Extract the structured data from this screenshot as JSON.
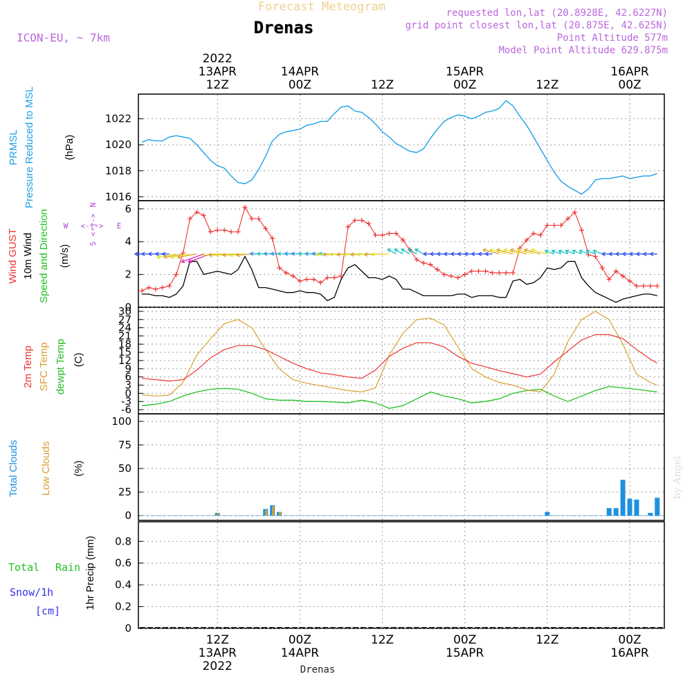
{
  "header": {
    "super_title": "Forecast Meteogram",
    "title": "Drenas",
    "model": "ICON-EU, ~ 7km",
    "requested": "requested lon,lat (20.8928E, 42.6227N)",
    "grid_point": "grid point closest lon,lat (20.875E, 42.625N)",
    "point_altitude": "Point Altitude 577m",
    "model_altitude": "Model Point Altitude 629.875m"
  },
  "footer": {
    "title": "Drenas",
    "credit": "by Angel"
  },
  "colors": {
    "pressure": "#1ea0e6",
    "gust": "#ee3333",
    "wind": "#000000",
    "temp": "#ee3333",
    "sfc": "#daa030",
    "dew": "#22c022",
    "total_clouds": "#1e90e0",
    "low_clouds": "#daa030",
    "rain": "#22c022",
    "snow": "#3333ee",
    "arrow_dir": "#aa44dd",
    "text_purple": "#bb66dd"
  },
  "time_axis": {
    "top_labels": [
      {
        "t": 11,
        "lines": [
          "2022",
          "13APR",
          "12Z"
        ]
      },
      {
        "t": 23,
        "lines": [
          "14APR",
          "00Z"
        ]
      },
      {
        "t": 35,
        "lines": [
          "12Z"
        ]
      },
      {
        "t": 47,
        "lines": [
          "15APR",
          "00Z"
        ]
      },
      {
        "t": 59,
        "lines": [
          "12Z"
        ]
      },
      {
        "t": 71,
        "lines": [
          "16APR",
          "00Z"
        ]
      }
    ],
    "bottom_labels": [
      {
        "t": 11,
        "lines": [
          "12Z",
          "13APR",
          "2022"
        ]
      },
      {
        "t": 23,
        "lines": [
          "00Z",
          "14APR"
        ]
      },
      {
        "t": 35,
        "lines": [
          "12Z"
        ]
      },
      {
        "t": 47,
        "lines": [
          "00Z",
          "15APR"
        ]
      },
      {
        "t": 59,
        "lines": [
          "12Z"
        ]
      },
      {
        "t": 71,
        "lines": [
          "00Z",
          "16APR"
        ]
      }
    ]
  },
  "panels": {
    "pressure": {
      "label1": "PRMSL",
      "label2": "Pressure Reduced to MSL",
      "unit": "(hPa)",
      "ticks": [
        "1016",
        "1018",
        "1020",
        "1022"
      ]
    },
    "wind": {
      "label_gust": "Wind GUST",
      "label_wind": "10m Wind",
      "label_dir": "Speed and Direction",
      "unit": "(m/s)",
      "ticks": [
        "0",
        "2",
        "4",
        "6"
      ],
      "compass": {
        "n": "N",
        "s": "S",
        "e": "E",
        "w": "W"
      }
    },
    "temp": {
      "label_t2m": "2m Temp",
      "label_sfc": "SFC Temp",
      "label_dew": "dewpt Temp",
      "unit": "(C)",
      "ticks": [
        "-6",
        "-3",
        "0",
        "3",
        "6",
        "9",
        "12",
        "15",
        "18",
        "21",
        "24",
        "27",
        "30"
      ]
    },
    "clouds": {
      "label_total": "Total Clouds",
      "label_low": "Low Clouds",
      "unit": "(%)",
      "ticks": [
        "0",
        "25",
        "50",
        "75",
        "100"
      ]
    },
    "precip": {
      "label_total": "Total",
      "label_rain": "Rain",
      "label_snow": "Snow/1h",
      "label_cm": "[cm]",
      "unit": "1hr Precip (mm)",
      "ticks": [
        "0",
        "0.2",
        "0.4",
        "0.6",
        "0.8"
      ]
    }
  },
  "chart_data": [
    {
      "type": "line",
      "title": "PRMSL Pressure Reduced to MSL",
      "ylabel": "(hPa)",
      "ylim": [
        1015.7,
        1023.9
      ],
      "x_unit": "hours after 13APR 01Z",
      "series": [
        {
          "name": "PRMSL",
          "x": [
            0,
            1,
            2,
            3,
            4,
            5,
            6,
            7,
            8,
            9,
            10,
            11,
            12,
            13,
            14,
            15,
            16,
            17,
            18,
            19,
            20,
            21,
            22,
            23,
            24,
            25,
            26,
            27,
            28,
            29,
            30,
            31,
            32,
            33,
            34,
            35,
            36,
            37,
            38,
            39,
            40,
            41,
            42,
            43,
            44,
            45,
            46,
            47,
            48,
            49,
            50,
            51,
            52,
            53,
            54,
            55,
            56,
            57,
            58,
            59,
            60,
            61,
            62,
            63,
            64,
            65,
            66,
            67,
            68,
            69,
            70,
            71,
            72,
            73,
            74,
            75
          ],
          "values": [
            1020.2,
            1020.4,
            1020.3,
            1020.3,
            1020.6,
            1020.7,
            1020.6,
            1020.5,
            1020.0,
            1019.4,
            1018.8,
            1018.4,
            1018.2,
            1017.6,
            1017.1,
            1017.0,
            1017.3,
            1018.1,
            1019.1,
            1020.3,
            1020.8,
            1021.0,
            1021.1,
            1021.2,
            1021.5,
            1021.6,
            1021.8,
            1021.8,
            1022.4,
            1022.9,
            1023.0,
            1022.6,
            1022.5,
            1022.1,
            1021.6,
            1021.0,
            1020.6,
            1020.1,
            1019.8,
            1019.5,
            1019.4,
            1019.7,
            1020.5,
            1021.2,
            1021.8,
            1022.1,
            1022.3,
            1022.2,
            1022.0,
            1022.2,
            1022.5,
            1022.6,
            1022.8,
            1023.4,
            1023.0,
            1022.2,
            1021.5,
            1020.6,
            1019.7,
            1018.8,
            1017.9,
            1017.2,
            1016.8,
            1016.5,
            1016.2,
            1016.6,
            1017.3,
            1017.4,
            1017.4,
            1017.5,
            1017.6,
            1017.4,
            1017.5,
            1017.6,
            1017.6,
            1017.8
          ]
        }
      ]
    },
    {
      "type": "line",
      "title": "Wind GUST / 10m Wind Speed and Direction",
      "ylabel": "(m/s)",
      "ylim": [
        0,
        6.5
      ],
      "x_unit": "hours after 13APR 01Z",
      "series": [
        {
          "name": "Wind GUST",
          "x": [
            0,
            1,
            2,
            3,
            4,
            5,
            6,
            7,
            8,
            9,
            10,
            11,
            12,
            13,
            14,
            15,
            16,
            17,
            18,
            19,
            20,
            21,
            22,
            23,
            24,
            25,
            26,
            27,
            28,
            29,
            30,
            31,
            32,
            33,
            34,
            35,
            36,
            37,
            38,
            39,
            40,
            41,
            42,
            43,
            44,
            45,
            46,
            47,
            48,
            49,
            50,
            51,
            52,
            53,
            54,
            55,
            56,
            57,
            58,
            59,
            60,
            61,
            62,
            63,
            64,
            65,
            66,
            67,
            68,
            69,
            70,
            71,
            72,
            73,
            74,
            75
          ],
          "values": [
            1.0,
            1.2,
            1.1,
            1.2,
            1.3,
            2.0,
            3.3,
            5.4,
            5.8,
            5.6,
            4.6,
            4.7,
            4.7,
            4.6,
            4.6,
            6.1,
            5.4,
            5.4,
            4.8,
            4.2,
            2.4,
            2.1,
            1.9,
            1.6,
            1.7,
            1.7,
            1.5,
            1.8,
            1.8,
            1.9,
            4.9,
            5.3,
            5.3,
            5.1,
            4.4,
            4.4,
            4.5,
            4.5,
            4.1,
            3.5,
            2.9,
            2.7,
            2.6,
            2.3,
            2.0,
            1.9,
            1.8,
            2.0,
            2.2,
            2.2,
            2.2,
            2.1,
            2.1,
            2.1,
            2.1,
            3.6,
            4.1,
            4.5,
            4.4,
            5.0,
            5.0,
            5.0,
            5.4,
            5.8,
            4.7,
            3.2,
            3.1,
            2.4,
            1.7,
            2.2,
            1.9,
            1.6,
            1.3,
            1.3,
            1.3,
            1.3
          ]
        },
        {
          "name": "10m Wind",
          "x": [
            0,
            1,
            2,
            3,
            4,
            5,
            6,
            7,
            8,
            9,
            10,
            11,
            12,
            13,
            14,
            15,
            16,
            17,
            18,
            19,
            20,
            21,
            22,
            23,
            24,
            25,
            26,
            27,
            28,
            29,
            30,
            31,
            32,
            33,
            34,
            35,
            36,
            37,
            38,
            39,
            40,
            41,
            42,
            43,
            44,
            45,
            46,
            47,
            48,
            49,
            50,
            51,
            52,
            53,
            54,
            55,
            56,
            57,
            58,
            59,
            60,
            61,
            62,
            63,
            64,
            65,
            66,
            67,
            68,
            69,
            70,
            71,
            72,
            73,
            74,
            75
          ],
          "values": [
            0.8,
            0.8,
            0.7,
            0.7,
            0.6,
            0.8,
            1.3,
            2.8,
            2.8,
            2.0,
            2.1,
            2.2,
            2.1,
            2.0,
            2.3,
            3.1,
            2.3,
            1.2,
            1.2,
            1.1,
            1.0,
            0.9,
            0.9,
            1.0,
            0.9,
            0.9,
            0.8,
            0.4,
            0.6,
            1.7,
            2.4,
            2.6,
            2.2,
            1.8,
            1.8,
            1.7,
            1.9,
            1.7,
            1.1,
            1.1,
            0.9,
            0.7,
            0.7,
            0.7,
            0.7,
            0.7,
            0.8,
            0.8,
            0.6,
            0.7,
            0.7,
            0.7,
            0.6,
            0.6,
            1.6,
            1.7,
            1.4,
            1.5,
            1.8,
            2.4,
            2.3,
            2.4,
            2.8,
            2.8,
            1.8,
            1.3,
            0.9,
            0.7,
            0.5,
            0.3,
            0.5,
            0.6,
            0.7,
            0.8,
            0.8,
            0.7
          ]
        }
      ]
    },
    {
      "type": "line",
      "title": "2m Temp / SFC Temp / dewpt Temp",
      "ylabel": "(C)",
      "ylim": [
        -7.5,
        31.5
      ],
      "x_unit": "hours after 13APR 01Z",
      "series": [
        {
          "name": "2m Temp",
          "x": [
            0,
            2,
            4,
            6,
            8,
            10,
            12,
            14,
            16,
            18,
            20,
            22,
            24,
            26,
            28,
            30,
            32,
            34,
            36,
            38,
            40,
            42,
            44,
            46,
            48,
            50,
            52,
            54,
            56,
            58,
            60,
            62,
            64,
            66,
            68,
            70,
            72,
            74,
            75
          ],
          "values": [
            5.5,
            5,
            4.5,
            5,
            8.5,
            13,
            16,
            17.5,
            17.5,
            16,
            13.5,
            11,
            9,
            7.5,
            6.8,
            6.0,
            5.5,
            8.5,
            13.5,
            16.5,
            18.5,
            18.5,
            17,
            13.5,
            11,
            9.7,
            8.3,
            7.2,
            6,
            7,
            11.5,
            15.5,
            19.5,
            21.5,
            21.5,
            20,
            16,
            12.5,
            11
          ]
        },
        {
          "name": "SFC Temp",
          "x": [
            0,
            2,
            4,
            6,
            8,
            10,
            12,
            14,
            16,
            18,
            20,
            22,
            24,
            26,
            28,
            30,
            32,
            34,
            36,
            38,
            40,
            42,
            44,
            46,
            48,
            50,
            52,
            54,
            56,
            58,
            60,
            62,
            64,
            66,
            68,
            70,
            72,
            74,
            75
          ],
          "values": [
            -0.5,
            -1,
            -0.7,
            4,
            14,
            20,
            25.5,
            27,
            24,
            16,
            9,
            5,
            3.7,
            2.8,
            1.9,
            1.0,
            0.5,
            2.0,
            14,
            22,
            27,
            27.5,
            25,
            17,
            9,
            6,
            4,
            3,
            1.2,
            0.5,
            7,
            19,
            27,
            30,
            27,
            18,
            7,
            4,
            3
          ]
        },
        {
          "name": "dewpt Temp",
          "x": [
            0,
            2,
            4,
            6,
            8,
            10,
            12,
            14,
            16,
            18,
            20,
            22,
            24,
            26,
            28,
            30,
            32,
            34,
            36,
            38,
            40,
            42,
            44,
            46,
            48,
            50,
            52,
            54,
            56,
            58,
            60,
            62,
            64,
            66,
            68,
            70,
            72,
            74,
            75
          ],
          "values": [
            -4.5,
            -4,
            -3,
            -1,
            0.5,
            1.5,
            1.8,
            1.5,
            0,
            -2,
            -2.5,
            -2.5,
            -3,
            -3,
            -3.2,
            -3.5,
            -2.5,
            -3.5,
            -5.5,
            -4.5,
            -2,
            0.5,
            -1,
            -2,
            -3.5,
            -3,
            -2,
            0,
            1,
            1.5,
            -1,
            -3,
            -1,
            1,
            2.5,
            2,
            1.5,
            0.8,
            0.5
          ]
        }
      ]
    },
    {
      "type": "bar",
      "title": "Total Clouds / Low Clouds",
      "ylabel": "(%)",
      "ylim": [
        -5,
        108
      ],
      "x_unit": "hours after 13APR 01Z",
      "series": [
        {
          "name": "Total Clouds",
          "x": [
            11,
            18,
            19,
            20,
            59,
            68,
            69,
            70,
            71,
            72,
            73,
            74,
            75
          ],
          "values": [
            3,
            7,
            11,
            4,
            4,
            8,
            8,
            38,
            18,
            17,
            0,
            3,
            19
          ]
        },
        {
          "name": "Low Clouds",
          "x": [
            11,
            18,
            19,
            20
          ],
          "values": [
            3,
            6,
            10,
            4
          ]
        }
      ]
    },
    {
      "type": "bar",
      "title": "Total Rain / Snow/1h [cm]",
      "ylabel": "1hr Precip (mm)",
      "ylim": [
        0,
        0.98
      ],
      "x_unit": "hours after 13APR 01Z",
      "series": [
        {
          "name": "Total Rain",
          "x": [],
          "values": []
        },
        {
          "name": "Snow/1h",
          "x": [],
          "values": []
        }
      ]
    }
  ]
}
